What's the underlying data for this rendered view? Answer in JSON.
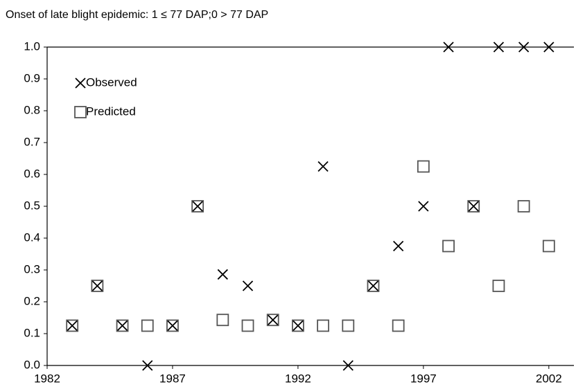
{
  "chart_data": {
    "type": "scatter",
    "title": "Onset of late blight epidemic:  1 ≤ 77 DAP;0 > 77 DAP",
    "x": [
      1983,
      1984,
      1985,
      1986,
      1987,
      1988,
      1989,
      1990,
      1991,
      1992,
      1993,
      1994,
      1995,
      1996,
      1997,
      1998,
      1999,
      2000,
      2001,
      2002
    ],
    "series": [
      {
        "name": "Observed",
        "color": "#000000",
        "marker": "x",
        "values": [
          0.125,
          0.25,
          0.125,
          0.0,
          0.125,
          0.5,
          0.286,
          0.25,
          0.143,
          0.125,
          0.625,
          0.0,
          0.25,
          0.375,
          0.5,
          1.0,
          0.5,
          1.0,
          1.0,
          1.0
        ]
      },
      {
        "name": "Predicted",
        "color": "#555555",
        "marker": "square",
        "values": [
          0.125,
          0.25,
          0.125,
          0.125,
          0.125,
          0.5,
          0.143,
          0.125,
          0.143,
          0.125,
          0.125,
          0.125,
          0.25,
          0.125,
          0.625,
          0.375,
          0.5,
          0.25,
          0.5,
          0.375
        ]
      }
    ],
    "xlim": [
      1982,
      2003
    ],
    "xticks": [
      1982,
      1987,
      1992,
      1997,
      2002
    ],
    "ylim": [
      0,
      1
    ],
    "yticks": [
      {
        "value": 0,
        "label": "0.0"
      },
      0.1,
      0.2,
      0.3,
      0.4,
      0.5,
      0.6,
      0.7,
      0.8,
      0.9,
      {
        "value": 1,
        "label": "1.0"
      }
    ],
    "legend": "upper left"
  }
}
